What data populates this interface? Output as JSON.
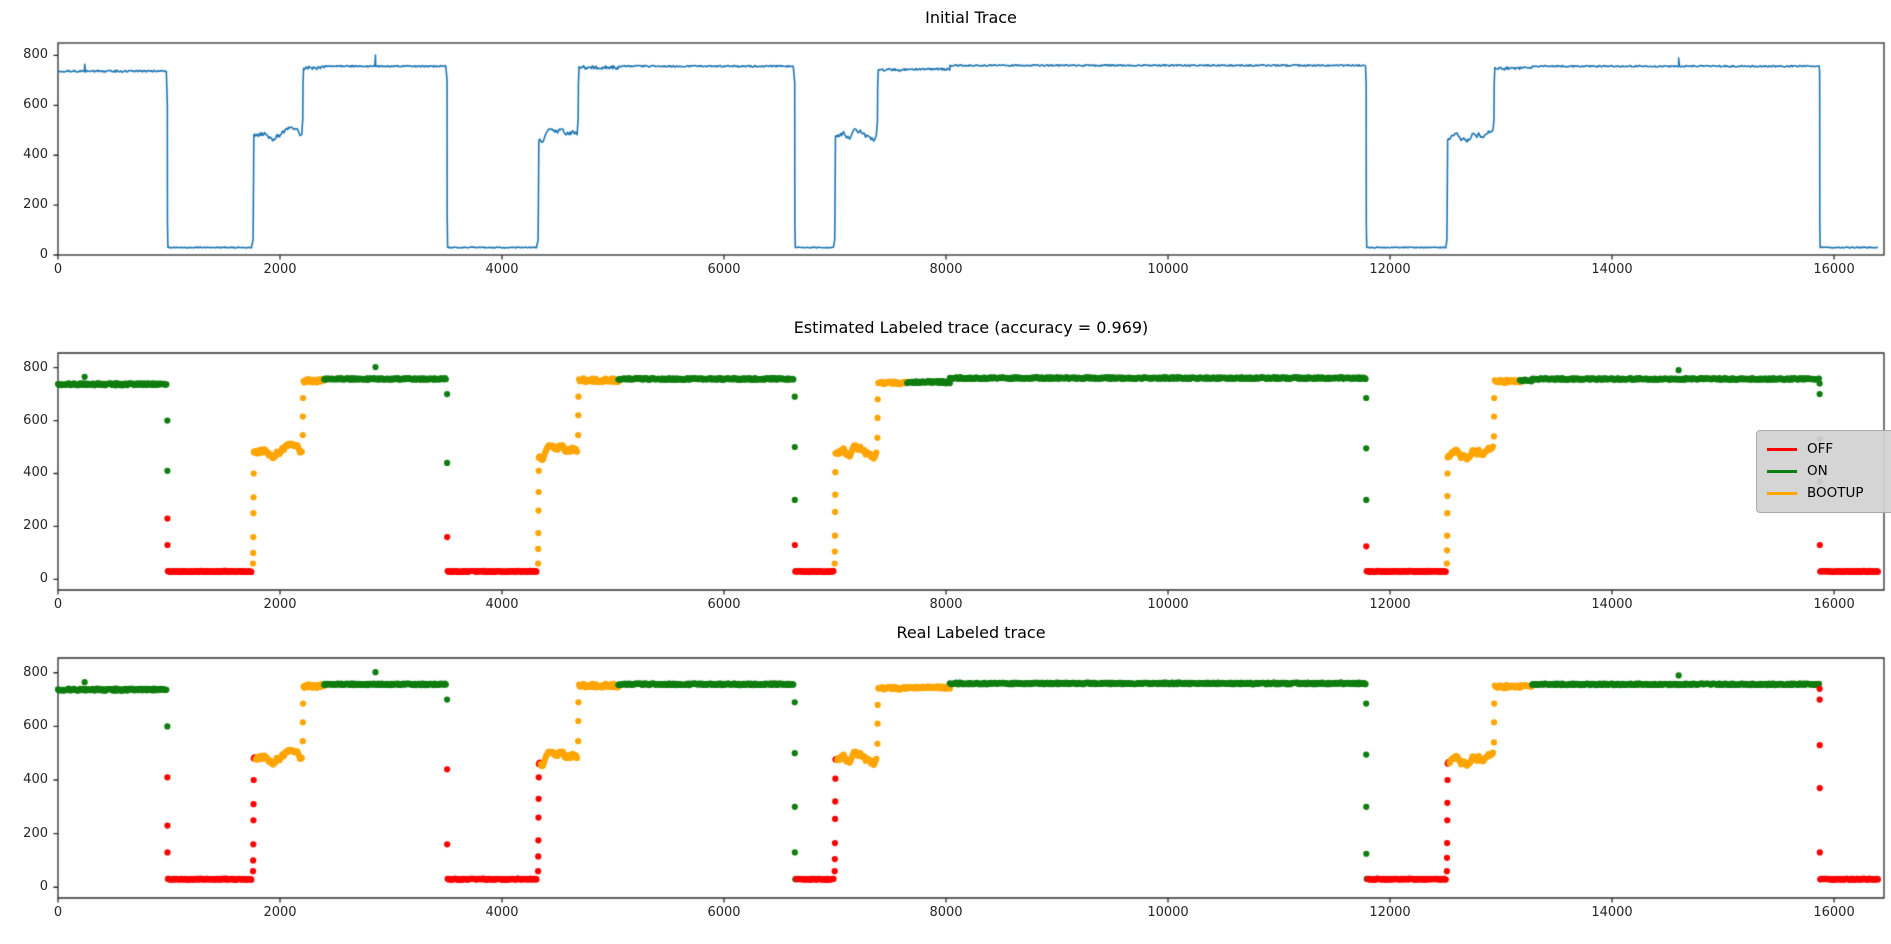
{
  "figure": {
    "background": "#ffffff"
  },
  "legend": {
    "entries": [
      {
        "key": "OFF",
        "label": "OFF"
      },
      {
        "key": "ON",
        "label": "ON"
      },
      {
        "key": "BOOTUP",
        "label": "BOOTUP"
      }
    ]
  },
  "chart_data": {
    "type": "multi-panel-timeseries",
    "panels": [
      {
        "title": "Initial Trace",
        "type": "line",
        "series_color_key": "TRACE"
      },
      {
        "title": "Estimated Labeled trace (accuracy = 0.969)",
        "type": "scatter",
        "label_field": "est",
        "accuracy": 0.969
      },
      {
        "title": "Real Labeled trace",
        "type": "scatter",
        "label_field": "real"
      }
    ],
    "xlim": [
      0,
      16450
    ],
    "x_ticks": [
      0,
      2000,
      4000,
      6000,
      8000,
      10000,
      12000,
      14000,
      16000
    ],
    "y_ticks": [
      0,
      200,
      400,
      600,
      800
    ],
    "ylim_line": [
      0,
      850
    ],
    "ylim_scatter": [
      -40,
      855
    ],
    "labels": [
      "OFF",
      "ON",
      "BOOTUP"
    ],
    "label_colors": {
      "OFF": "#fe0000",
      "ON": "#0f7d0f",
      "BOOTUP": "#ffa500",
      "TRACE": "#1f77b4"
    },
    "grid": false,
    "legend_position": "right-of-panel-2",
    "sample_step": 8,
    "signal_segments": [
      {
        "kind": "flat",
        "x0": 0,
        "x1": 980,
        "y": 737,
        "noise": 4,
        "est": "ON",
        "real": "ON",
        "spikes": [
          [
            240,
            765
          ]
        ]
      },
      {
        "kind": "dots",
        "x": 985,
        "dx": 0.4,
        "pts": [
          {
            "y": 600,
            "est": "ON",
            "real": "ON"
          },
          {
            "y": 410,
            "est": "ON",
            "real": "OFF"
          },
          {
            "y": 230,
            "est": "OFF",
            "real": "OFF"
          },
          {
            "y": 130,
            "est": "OFF",
            "real": "OFF"
          }
        ]
      },
      {
        "kind": "flat",
        "x0": 990,
        "x1": 1750,
        "y": 30,
        "noise": 2,
        "est": "OFF",
        "real": "OFF"
      },
      {
        "kind": "dots",
        "x": 1757,
        "dx": 1.2,
        "pts": [
          {
            "y": 60,
            "est": "BOOTUP",
            "real": "OFF"
          },
          {
            "y": 100,
            "est": "BOOTUP",
            "real": "OFF"
          },
          {
            "y": 160,
            "est": "BOOTUP",
            "real": "OFF"
          },
          {
            "y": 250,
            "est": "BOOTUP",
            "real": "OFF"
          },
          {
            "y": 310,
            "est": "BOOTUP",
            "real": "OFF"
          },
          {
            "y": 400,
            "est": "BOOTUP",
            "real": "OFF"
          }
        ]
      },
      {
        "kind": "wobble",
        "x0": 1764,
        "x1": 2200,
        "y0": 482,
        "min": 450,
        "max": 512,
        "est": "BOOTUP",
        "real": "BOOTUP",
        "head_n": 2,
        "head_real": "OFF"
      },
      {
        "kind": "dots",
        "x": 2205,
        "dx": 1.2,
        "pts": [
          {
            "y": 545,
            "est": "BOOTUP",
            "real": "BOOTUP"
          },
          {
            "y": 615,
            "est": "BOOTUP",
            "real": "BOOTUP"
          },
          {
            "y": 685,
            "est": "BOOTUP",
            "real": "BOOTUP"
          }
        ]
      },
      {
        "kind": "flat",
        "x0": 2212,
        "x1": 2398,
        "y": 750,
        "noise": 7,
        "est": "BOOTUP",
        "real": "BOOTUP"
      },
      {
        "kind": "flat",
        "x0": 2398,
        "x1": 3500,
        "y": 757,
        "noise": 3,
        "est": "ON",
        "real": "ON",
        "spikes": [
          [
            2860,
            802
          ]
        ]
      },
      {
        "kind": "dots",
        "x": 3505,
        "dx": 0.4,
        "pts": [
          {
            "y": 700,
            "est": "ON",
            "real": "ON"
          },
          {
            "y": 440,
            "est": "ON",
            "real": "OFF"
          },
          {
            "y": 160,
            "est": "OFF",
            "real": "OFF"
          }
        ]
      },
      {
        "kind": "flat",
        "x0": 3510,
        "x1": 4318,
        "y": 30,
        "noise": 2,
        "est": "OFF",
        "real": "OFF"
      },
      {
        "kind": "dots",
        "x": 4325,
        "dx": 1.2,
        "pts": [
          {
            "y": 60,
            "est": "BOOTUP",
            "real": "OFF"
          },
          {
            "y": 115,
            "est": "BOOTUP",
            "real": "OFF"
          },
          {
            "y": 175,
            "est": "BOOTUP",
            "real": "OFF"
          },
          {
            "y": 260,
            "est": "BOOTUP",
            "real": "OFF"
          },
          {
            "y": 330,
            "est": "BOOTUP",
            "real": "OFF"
          },
          {
            "y": 410,
            "est": "BOOTUP",
            "real": "OFF"
          }
        ]
      },
      {
        "kind": "wobble",
        "x0": 4332,
        "x1": 4680,
        "y0": 468,
        "min": 448,
        "max": 505,
        "est": "BOOTUP",
        "real": "BOOTUP",
        "head_n": 2,
        "head_real": "OFF"
      },
      {
        "kind": "dots",
        "x": 4686,
        "dx": 1.2,
        "pts": [
          {
            "y": 545,
            "est": "BOOTUP",
            "real": "BOOTUP"
          },
          {
            "y": 620,
            "est": "BOOTUP",
            "real": "BOOTUP"
          },
          {
            "y": 690,
            "est": "BOOTUP",
            "real": "BOOTUP"
          }
        ]
      },
      {
        "kind": "flat",
        "x0": 4694,
        "x1": 5048,
        "y": 752,
        "noise": 7,
        "est": "BOOTUP",
        "real": "BOOTUP"
      },
      {
        "kind": "flat",
        "x0": 5048,
        "x1": 6630,
        "y": 757,
        "noise": 3,
        "est": "ON",
        "real": "ON"
      },
      {
        "kind": "dots",
        "x": 6637,
        "dx": 0.4,
        "pts": [
          {
            "y": 690,
            "est": "ON",
            "real": "ON"
          },
          {
            "y": 500,
            "est": "ON",
            "real": "ON"
          },
          {
            "y": 300,
            "est": "ON",
            "real": "ON"
          },
          {
            "y": 130,
            "est": "OFF",
            "real": "ON"
          }
        ]
      },
      {
        "kind": "flat",
        "x0": 6642,
        "x1": 6990,
        "y": 30,
        "noise": 2,
        "est": "OFF",
        "real": "OFF",
        "head_n": 1,
        "head_real": "ON"
      },
      {
        "kind": "dots",
        "x": 6997,
        "dx": 1.2,
        "pts": [
          {
            "y": 60,
            "est": "BOOTUP",
            "real": "OFF"
          },
          {
            "y": 105,
            "est": "BOOTUP",
            "real": "OFF"
          },
          {
            "y": 165,
            "est": "BOOTUP",
            "real": "OFF"
          },
          {
            "y": 255,
            "est": "BOOTUP",
            "real": "OFF"
          },
          {
            "y": 320,
            "est": "BOOTUP",
            "real": "OFF"
          },
          {
            "y": 405,
            "est": "BOOTUP",
            "real": "OFF"
          }
        ]
      },
      {
        "kind": "wobble",
        "x0": 7004,
        "x1": 7376,
        "y0": 470,
        "min": 448,
        "max": 505,
        "est": "BOOTUP",
        "real": "BOOTUP",
        "head_n": 2,
        "head_real": "OFF"
      },
      {
        "kind": "dots",
        "x": 7382,
        "dx": 1.2,
        "pts": [
          {
            "y": 535,
            "est": "BOOTUP",
            "real": "BOOTUP"
          },
          {
            "y": 610,
            "est": "BOOTUP",
            "real": "BOOTUP"
          },
          {
            "y": 680,
            "est": "BOOTUP",
            "real": "BOOTUP"
          }
        ]
      },
      {
        "kind": "flat",
        "x0": 7390,
        "x1": 7650,
        "y": 742,
        "noise": 5,
        "est": "BOOTUP",
        "real": "BOOTUP"
      },
      {
        "kind": "flat",
        "x0": 7650,
        "x1": 8035,
        "y": 745,
        "noise": 4,
        "est": "ON",
        "real": "BOOTUP"
      },
      {
        "kind": "flat",
        "x0": 8035,
        "x1": 11780,
        "y": 760,
        "noise": 3,
        "est": "ON",
        "real": "ON"
      },
      {
        "kind": "dots",
        "x": 11785,
        "dx": 0.4,
        "pts": [
          {
            "y": 685,
            "est": "ON",
            "real": "ON"
          },
          {
            "y": 495,
            "est": "ON",
            "real": "ON"
          },
          {
            "y": 300,
            "est": "ON",
            "real": "ON"
          },
          {
            "y": 125,
            "est": "OFF",
            "real": "ON"
          }
        ]
      },
      {
        "kind": "flat",
        "x0": 11790,
        "x1": 12505,
        "y": 30,
        "noise": 2,
        "est": "OFF",
        "real": "OFF",
        "head_n": 1,
        "head_real": "ON"
      },
      {
        "kind": "dots",
        "x": 12512,
        "dx": 1.2,
        "pts": [
          {
            "y": 60,
            "est": "BOOTUP",
            "real": "OFF"
          },
          {
            "y": 110,
            "est": "BOOTUP",
            "real": "OFF"
          },
          {
            "y": 165,
            "est": "BOOTUP",
            "real": "OFF"
          },
          {
            "y": 250,
            "est": "BOOTUP",
            "real": "OFF"
          },
          {
            "y": 315,
            "est": "BOOTUP",
            "real": "OFF"
          },
          {
            "y": 400,
            "est": "BOOTUP",
            "real": "OFF"
          }
        ]
      },
      {
        "kind": "wobble",
        "x0": 12519,
        "x1": 12930,
        "y0": 466,
        "min": 446,
        "max": 502,
        "est": "BOOTUP",
        "real": "BOOTUP",
        "head_n": 2,
        "head_real": "OFF"
      },
      {
        "kind": "dots",
        "x": 12936,
        "dx": 1.2,
        "pts": [
          {
            "y": 540,
            "est": "BOOTUP",
            "real": "BOOTUP"
          },
          {
            "y": 615,
            "est": "BOOTUP",
            "real": "BOOTUP"
          },
          {
            "y": 685,
            "est": "BOOTUP",
            "real": "BOOTUP"
          }
        ]
      },
      {
        "kind": "flat",
        "x0": 12944,
        "x1": 13170,
        "y": 748,
        "noise": 6,
        "est": "BOOTUP",
        "real": "BOOTUP"
      },
      {
        "kind": "flat",
        "x0": 13170,
        "x1": 13280,
        "y": 752,
        "noise": 4,
        "est": "ON",
        "real": "BOOTUP"
      },
      {
        "kind": "flat",
        "x0": 13280,
        "x1": 15865,
        "y": 757,
        "noise": 3,
        "est": "ON",
        "real": "ON",
        "spikes": [
          [
            14600,
            790
          ]
        ]
      },
      {
        "kind": "dots",
        "x": 15870,
        "dx": 0.4,
        "pts": [
          {
            "y": 740,
            "est": "ON",
            "real": "OFF"
          },
          {
            "y": 700,
            "est": "ON",
            "real": "OFF"
          },
          {
            "y": 530,
            "est": "ON",
            "real": "OFF"
          },
          {
            "y": 370,
            "est": "ON",
            "real": "OFF"
          },
          {
            "y": 130,
            "est": "OFF",
            "real": "OFF"
          }
        ]
      },
      {
        "kind": "flat",
        "x0": 15875,
        "x1": 16400,
        "y": 30,
        "noise": 2,
        "est": "OFF",
        "real": "OFF"
      }
    ]
  }
}
